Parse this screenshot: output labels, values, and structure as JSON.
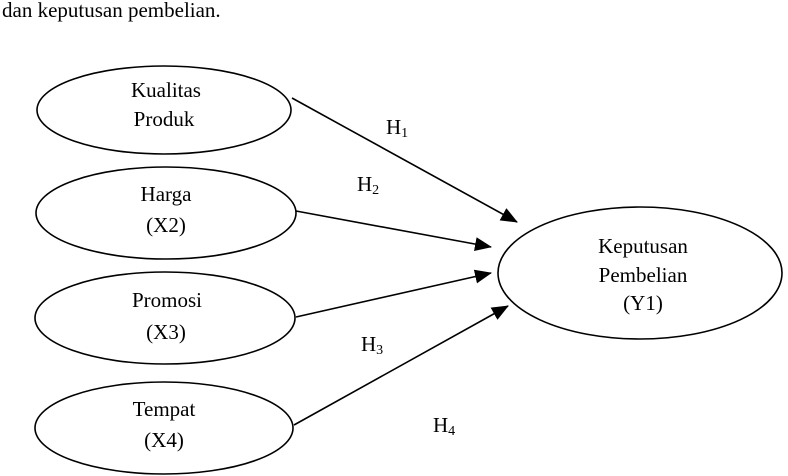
{
  "intro_text": "dan keputusan pembelian.",
  "nodes": {
    "kualitas_produk": {
      "lines": [
        "Kualitas",
        "Produk"
      ]
    },
    "harga": {
      "lines": [
        "Harga",
        "(X2)"
      ]
    },
    "promosi": {
      "lines": [
        "Promosi",
        "(X3)"
      ]
    },
    "tempat": {
      "lines": [
        "Tempat",
        "(X4)"
      ]
    },
    "keputusan_pembelian": {
      "lines": [
        "Keputusan",
        "Pembelian",
        "(Y1)"
      ]
    }
  },
  "hypotheses": {
    "h1": {
      "letter": "H",
      "sub": "1"
    },
    "h2": {
      "letter": "H",
      "sub": "2"
    },
    "h3": {
      "letter": "H",
      "sub": "3"
    },
    "h4": {
      "letter": "H",
      "sub": "4"
    }
  },
  "colors": {
    "stroke": "#000000",
    "text": "#000000",
    "background": "#ffffff"
  }
}
